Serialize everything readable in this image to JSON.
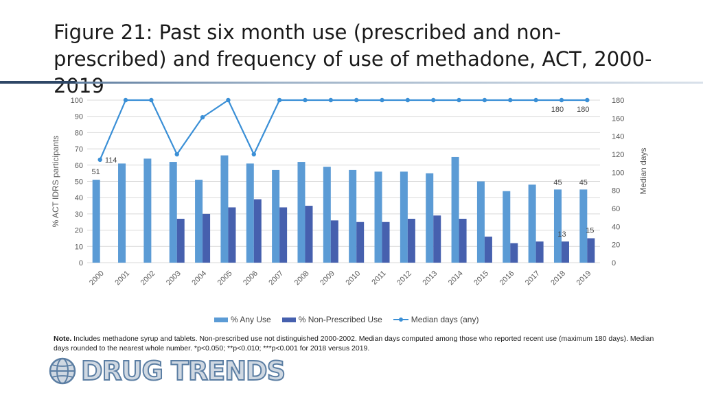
{
  "title": "Figure 21: Past six month use (prescribed and non-prescribed) and frequency of use of methadone, ACT, 2000-2019",
  "colors": {
    "any_use": "#5b9bd5",
    "non_prescribed": "#4660ae",
    "median": "#3a8fd6",
    "grid": "#d9d9d9"
  },
  "chart_data": {
    "type": "bar",
    "categories": [
      "2000",
      "2001",
      "2002",
      "2003",
      "2004",
      "2005",
      "2006",
      "2007",
      "2008",
      "2009",
      "2010",
      "2011",
      "2012",
      "2013",
      "2014",
      "2015",
      "2016",
      "2017",
      "2018",
      "2019"
    ],
    "series": [
      {
        "name": "% Any Use",
        "type": "bar",
        "axis": "left",
        "values": [
          51,
          61,
          64,
          62,
          51,
          66,
          61,
          57,
          62,
          59,
          57,
          56,
          56,
          55,
          65,
          50,
          44,
          48,
          45,
          45
        ]
      },
      {
        "name": "% Non-Prescribed Use",
        "type": "bar",
        "axis": "left",
        "values": [
          null,
          null,
          null,
          27,
          30,
          34,
          39,
          34,
          35,
          26,
          25,
          25,
          27,
          29,
          27,
          16,
          12,
          13,
          13,
          15
        ]
      },
      {
        "name": "Median days (any)",
        "type": "line",
        "axis": "right",
        "values": [
          114,
          180,
          180,
          120,
          161,
          180,
          120,
          180,
          180,
          180,
          180,
          180,
          180,
          180,
          180,
          180,
          180,
          180,
          180,
          180
        ]
      }
    ],
    "data_labels": [
      {
        "series": 0,
        "index": 0,
        "text": "51"
      },
      {
        "series": 0,
        "index": 18,
        "text": "45"
      },
      {
        "series": 0,
        "index": 19,
        "text": "45"
      },
      {
        "series": 1,
        "index": 18,
        "text": "13"
      },
      {
        "series": 1,
        "index": 19,
        "text": "15"
      },
      {
        "series": 2,
        "index": 0,
        "text": "114"
      },
      {
        "series": 2,
        "index": 18,
        "text": "180"
      },
      {
        "series": 2,
        "index": 19,
        "text": "180"
      }
    ],
    "ylabel": "% ACT IDRS participants",
    "y2label": "Median days",
    "ylim": [
      0,
      100
    ],
    "yticks": [
      0,
      10,
      20,
      30,
      40,
      50,
      60,
      70,
      80,
      90,
      100
    ],
    "y2lim": [
      0,
      180
    ],
    "y2ticks": [
      0,
      20,
      40,
      60,
      80,
      100,
      120,
      140,
      160,
      180
    ],
    "grid": true,
    "legend_position": "bottom"
  },
  "legend": {
    "any_use": "% Any Use",
    "non_prescribed": "% Non-Prescribed Use",
    "median": "Median days (any)"
  },
  "note": {
    "label": "Note",
    "text": " Includes methadone syrup and tablets. Non-prescribed use not distinguished 2000-2002. Median days computed among those who reported recent use (maximum 180 days). Median days rounded to the nearest whole number. *p<0.050; **p<0.010; ***p<0.001 for 2018 versus 2019."
  },
  "logo": {
    "text": "DRUG TRENDS"
  }
}
